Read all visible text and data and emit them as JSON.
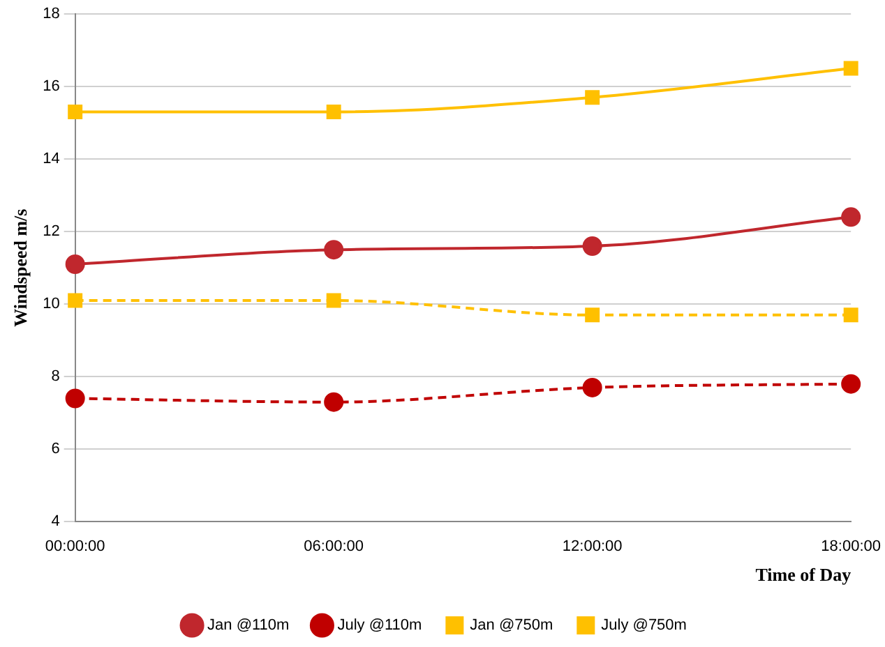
{
  "chart_data": {
    "type": "line",
    "xlabel": "Time of Day",
    "ylabel": "Windspeed m/s",
    "categories": [
      "00:00:00",
      "06:00:00",
      "12:00:00",
      "18:00:00"
    ],
    "ylim": [
      4,
      18
    ],
    "yticks": [
      4,
      6,
      8,
      10,
      12,
      14,
      16,
      18
    ],
    "grid": "y",
    "legend": "bottom",
    "series": [
      {
        "name": "Jan @110m",
        "color": "#c0272d",
        "values": [
          11.1,
          11.5,
          11.6,
          12.4
        ],
        "marker": "circle",
        "line_style": "solid"
      },
      {
        "name": "July @110m",
        "color": "#c00000",
        "values": [
          7.4,
          7.3,
          7.7,
          7.8
        ],
        "marker": "circle",
        "line_style": "dashed"
      },
      {
        "name": "Jan @750m",
        "color": "#ffc000",
        "values": [
          15.3,
          15.3,
          15.7,
          16.5
        ],
        "marker": "square",
        "line_style": "solid"
      },
      {
        "name": "July @750m",
        "color": "#ffc000",
        "values": [
          10.1,
          10.1,
          9.7,
          9.7
        ],
        "marker": "square",
        "line_style": "dashed"
      }
    ]
  }
}
